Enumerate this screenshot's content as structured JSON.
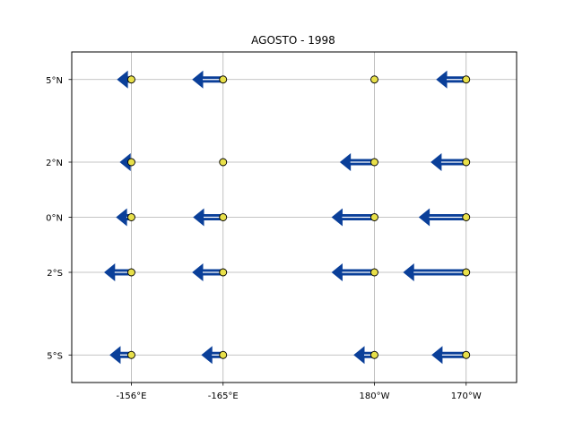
{
  "chart_data": {
    "type": "vector-field",
    "title": "AGOSTO - 1998",
    "x_ticks": [
      {
        "label": "-156°E",
        "value": 0
      },
      {
        "label": "-165°E",
        "value": 1
      },
      {
        "label": "180°W",
        "value": 2.65
      },
      {
        "label": "170°W",
        "value": 3.65
      }
    ],
    "y_ticks": [
      {
        "label": "5°N",
        "value": 5
      },
      {
        "label": "2°N",
        "value": 2
      },
      {
        "label": "0°N",
        "value": 0
      },
      {
        "label": "2°S",
        "value": -2
      },
      {
        "label": "5°S",
        "value": -5
      }
    ],
    "xlim": [
      -0.65,
      4.2
    ],
    "ylim": [
      -6.0,
      6.0
    ],
    "grid": true,
    "arrow_color": "#0a3f99",
    "marker_color": "#e8e04a",
    "vectors": [
      {
        "x": 0,
        "y": 5,
        "u": -0.15
      },
      {
        "x": 1,
        "y": 5,
        "u": -0.33
      },
      {
        "x": 2.65,
        "y": 5,
        "u": 0
      },
      {
        "x": 3.65,
        "y": 5,
        "u": -0.32
      },
      {
        "x": 0,
        "y": 2,
        "u": -0.12
      },
      {
        "x": 1,
        "y": 2,
        "u": 0
      },
      {
        "x": 2.65,
        "y": 2,
        "u": -0.37
      },
      {
        "x": 3.65,
        "y": 2,
        "u": -0.38
      },
      {
        "x": 0,
        "y": 0,
        "u": -0.16
      },
      {
        "x": 1,
        "y": 0,
        "u": -0.32
      },
      {
        "x": 2.65,
        "y": 0,
        "u": -0.46
      },
      {
        "x": 3.65,
        "y": 0,
        "u": -0.51
      },
      {
        "x": 0,
        "y": -2,
        "u": -0.29
      },
      {
        "x": 1,
        "y": -2,
        "u": -0.33
      },
      {
        "x": 2.65,
        "y": -2,
        "u": -0.46
      },
      {
        "x": 3.65,
        "y": -2,
        "u": -0.68
      },
      {
        "x": 0,
        "y": -5,
        "u": -0.23
      },
      {
        "x": 1,
        "y": -5,
        "u": -0.23
      },
      {
        "x": 2.65,
        "y": -5,
        "u": -0.22
      },
      {
        "x": 3.65,
        "y": -5,
        "u": -0.37
      }
    ]
  }
}
